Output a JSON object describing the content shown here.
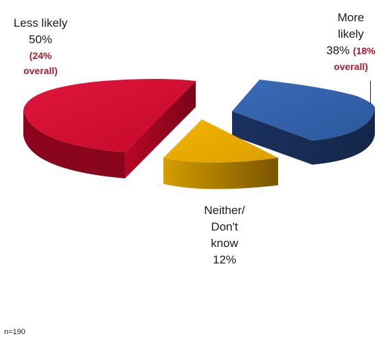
{
  "chart_data": {
    "type": "pie",
    "title": "",
    "slices": [
      {
        "label_lines": [
          "Less likely"
        ],
        "value": 50,
        "value_label": "50%",
        "overall_lines": [
          "(24%",
          "overall)"
        ],
        "color": "#cc0a2e"
      },
      {
        "label_lines": [
          "More",
          "likely"
        ],
        "value": 38,
        "value_label": "38%",
        "overall_lines": [
          "(18%",
          "overall)"
        ],
        "color": "#3461a8"
      },
      {
        "label_lines": [
          "Neither/",
          "Don't",
          "know"
        ],
        "value": 12,
        "value_label": "12%",
        "overall_lines": [],
        "color": "#e8aa00"
      }
    ],
    "exploded": true,
    "three_d": true,
    "legend": "none"
  },
  "footnote": "n=190"
}
